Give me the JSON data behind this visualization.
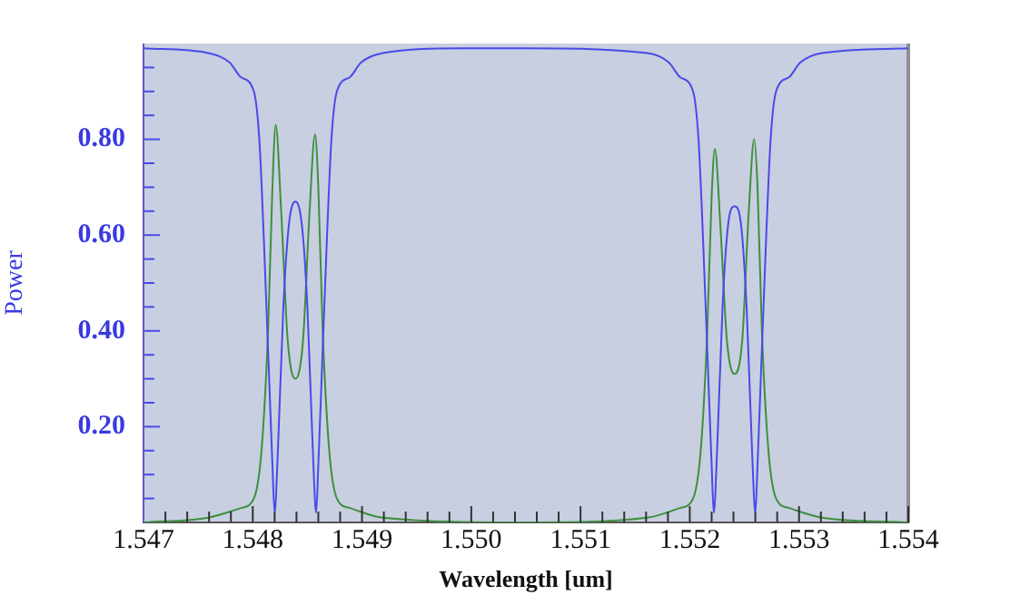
{
  "chart_data": {
    "type": "line",
    "xlabel": "Wavelength [um]",
    "ylabel": "Power",
    "xlim": [
      1.547,
      1.554
    ],
    "ylim": [
      0,
      1
    ],
    "xticks": [
      {
        "value": 1.547,
        "label": "1.547"
      },
      {
        "value": 1.5472,
        "label": null
      },
      {
        "value": 1.5474,
        "label": null
      },
      {
        "value": 1.5476,
        "label": null
      },
      {
        "value": 1.5478,
        "label": null
      },
      {
        "value": 1.548,
        "label": "1.548"
      },
      {
        "value": 1.5482,
        "label": null
      },
      {
        "value": 1.5484,
        "label": null
      },
      {
        "value": 1.5486,
        "label": null
      },
      {
        "value": 1.5488,
        "label": null
      },
      {
        "value": 1.549,
        "label": "1.549"
      },
      {
        "value": 1.5492,
        "label": null
      },
      {
        "value": 1.5494,
        "label": null
      },
      {
        "value": 1.5496,
        "label": null
      },
      {
        "value": 1.5498,
        "label": null
      },
      {
        "value": 1.55,
        "label": "1.550"
      },
      {
        "value": 1.5502,
        "label": null
      },
      {
        "value": 1.5504,
        "label": null
      },
      {
        "value": 1.5506,
        "label": null
      },
      {
        "value": 1.5508,
        "label": null
      },
      {
        "value": 1.551,
        "label": "1.551"
      },
      {
        "value": 1.5512,
        "label": null
      },
      {
        "value": 1.5514,
        "label": null
      },
      {
        "value": 1.5516,
        "label": null
      },
      {
        "value": 1.5518,
        "label": null
      },
      {
        "value": 1.552,
        "label": "1.552"
      },
      {
        "value": 1.5522,
        "label": null
      },
      {
        "value": 1.5524,
        "label": null
      },
      {
        "value": 1.5526,
        "label": null
      },
      {
        "value": 1.5528,
        "label": null
      },
      {
        "value": 1.553,
        "label": "1.553"
      },
      {
        "value": 1.5532,
        "label": null
      },
      {
        "value": 1.5534,
        "label": null
      },
      {
        "value": 1.5536,
        "label": null
      },
      {
        "value": 1.5538,
        "label": null
      },
      {
        "value": 1.554,
        "label": "1.554"
      }
    ],
    "yticks": [
      {
        "value": 0.05,
        "label": null
      },
      {
        "value": 0.1,
        "label": null
      },
      {
        "value": 0.15,
        "label": null
      },
      {
        "value": 0.2,
        "label": "0.20"
      },
      {
        "value": 0.25,
        "label": null
      },
      {
        "value": 0.3,
        "label": null
      },
      {
        "value": 0.35,
        "label": null
      },
      {
        "value": 0.4,
        "label": "0.40"
      },
      {
        "value": 0.45,
        "label": null
      },
      {
        "value": 0.5,
        "label": null
      },
      {
        "value": 0.55,
        "label": null
      },
      {
        "value": 0.6,
        "label": "0.60"
      },
      {
        "value": 0.65,
        "label": null
      },
      {
        "value": 0.7,
        "label": null
      },
      {
        "value": 0.75,
        "label": null
      },
      {
        "value": 0.8,
        "label": "0.80"
      },
      {
        "value": 0.85,
        "label": null
      },
      {
        "value": 0.9,
        "label": null
      },
      {
        "value": 0.95,
        "label": null
      }
    ],
    "grid": false,
    "legend": false,
    "marker": "none",
    "line_style": "solid",
    "series": [
      {
        "color": "#4a4ae8",
        "x": [
          1.547,
          1.54759,
          1.54779,
          1.54789,
          1.54801,
          1.54806,
          1.5481,
          1.54815,
          1.54818,
          1.5482,
          1.54823,
          1.54828,
          1.54833,
          1.54839,
          1.54845,
          1.5485,
          1.54855,
          1.54858,
          1.5486,
          1.54863,
          1.54868,
          1.54872,
          1.54877,
          1.54889,
          1.54899,
          1.54919,
          1.5499,
          1.5505,
          1.55161,
          1.55181,
          1.55191,
          1.55203,
          1.55208,
          1.55212,
          1.55217,
          1.5522,
          1.55222,
          1.55225,
          1.5523,
          1.55235,
          1.55241,
          1.55247,
          1.55252,
          1.55257,
          1.5526,
          1.55262,
          1.55265,
          1.5527,
          1.55274,
          1.55279,
          1.55291,
          1.55301,
          1.55321,
          1.554
        ],
        "values": [
          0.99,
          0.98,
          0.96,
          0.93,
          0.9,
          0.8,
          0.6,
          0.3,
          0.12,
          0.02,
          0.15,
          0.45,
          0.62,
          0.67,
          0.62,
          0.45,
          0.15,
          0.02,
          0.12,
          0.3,
          0.6,
          0.8,
          0.9,
          0.93,
          0.96,
          0.98,
          0.99,
          0.99,
          0.98,
          0.96,
          0.93,
          0.9,
          0.8,
          0.6,
          0.3,
          0.12,
          0.02,
          0.15,
          0.45,
          0.62,
          0.66,
          0.62,
          0.45,
          0.15,
          0.02,
          0.12,
          0.3,
          0.6,
          0.8,
          0.9,
          0.93,
          0.96,
          0.98,
          0.99
        ]
      },
      {
        "color": "#3f8f3f",
        "x": [
          1.547,
          1.54759,
          1.54789,
          1.54801,
          1.54808,
          1.54814,
          1.54818,
          1.54821,
          1.54826,
          1.54832,
          1.54839,
          1.54846,
          1.54852,
          1.54857,
          1.5486,
          1.54864,
          1.5487,
          1.54877,
          1.54889,
          1.54919,
          1.5505,
          1.55161,
          1.55191,
          1.55203,
          1.5521,
          1.55216,
          1.5522,
          1.55223,
          1.55228,
          1.55234,
          1.55241,
          1.55248,
          1.55254,
          1.55259,
          1.55262,
          1.55266,
          1.55272,
          1.55279,
          1.55291,
          1.55321,
          1.554
        ],
        "values": [
          0,
          0.01,
          0.03,
          0.05,
          0.15,
          0.4,
          0.7,
          0.83,
          0.65,
          0.38,
          0.3,
          0.38,
          0.65,
          0.81,
          0.7,
          0.4,
          0.15,
          0.05,
          0.03,
          0.01,
          0,
          0.01,
          0.03,
          0.05,
          0.15,
          0.4,
          0.68,
          0.78,
          0.62,
          0.38,
          0.31,
          0.38,
          0.65,
          0.8,
          0.7,
          0.4,
          0.15,
          0.05,
          0.03,
          0.01,
          0
        ]
      }
    ]
  }
}
